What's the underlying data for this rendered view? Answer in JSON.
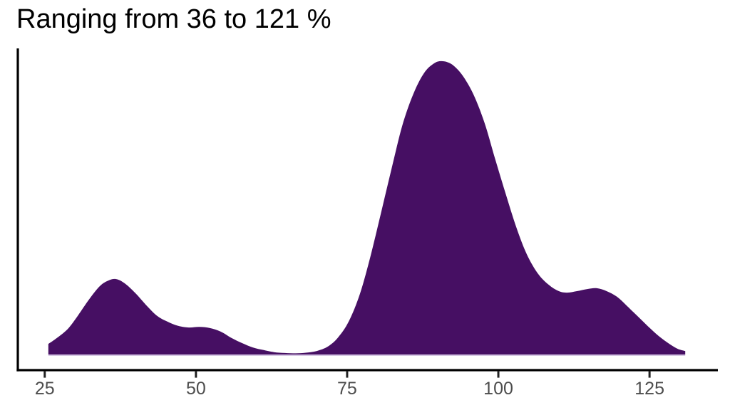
{
  "colors": {
    "background": "#FFFFFF",
    "fill": "#460F63",
    "axis_line": "#000000",
    "tick_mark": "#222222",
    "tick_label": "#4D4D4D",
    "title": "#000000",
    "baseline_edge": "#C9B5DB"
  },
  "chart_data": {
    "type": "area",
    "subtype": "density",
    "title": "Ranging from 36 to 121 %",
    "xlabel": "",
    "ylabel": "",
    "grid": false,
    "legend": false,
    "x_ticks": [
      25,
      50,
      75,
      100,
      125
    ],
    "xlim": [
      20.55,
      136.3
    ],
    "ylim": [
      0,
      1
    ],
    "y_units": "density-normalized-to-peak",
    "peaks": [
      {
        "x": 36.8,
        "y": 0.257
      },
      {
        "x": 50.6,
        "y": 0.094
      },
      {
        "x": 90.8,
        "y": 1.0
      },
      {
        "x": 116.3,
        "y": 0.226
      }
    ],
    "series": [
      {
        "name": "density",
        "x": [
          25.6,
          27.0,
          28.8,
          30.5,
          32.3,
          34.1,
          35.5,
          36.8,
          38.2,
          40.0,
          41.7,
          43.5,
          45.3,
          47.0,
          48.8,
          50.6,
          52.3,
          54.1,
          55.9,
          57.6,
          59.4,
          61.2,
          62.9,
          64.7,
          66.5,
          68.2,
          70.0,
          71.8,
          73.5,
          75.3,
          77.1,
          78.8,
          80.6,
          82.4,
          84.1,
          85.9,
          87.7,
          89.4,
          90.8,
          92.4,
          94.1,
          95.9,
          97.7,
          99.4,
          101.2,
          103.0,
          104.7,
          106.5,
          108.3,
          110.0,
          111.4,
          113.0,
          114.7,
          116.3,
          117.9,
          119.6,
          121.2,
          123.0,
          124.8,
          126.5,
          128.3,
          129.7,
          130.9
        ],
        "y": [
          0.036,
          0.056,
          0.087,
          0.133,
          0.187,
          0.233,
          0.252,
          0.257,
          0.243,
          0.209,
          0.17,
          0.133,
          0.112,
          0.098,
          0.092,
          0.094,
          0.09,
          0.078,
          0.056,
          0.039,
          0.024,
          0.015,
          0.008,
          0.005,
          0.004,
          0.006,
          0.012,
          0.027,
          0.058,
          0.114,
          0.206,
          0.33,
          0.483,
          0.638,
          0.779,
          0.886,
          0.959,
          0.993,
          1.0,
          0.988,
          0.951,
          0.886,
          0.791,
          0.672,
          0.549,
          0.432,
          0.342,
          0.277,
          0.238,
          0.216,
          0.211,
          0.216,
          0.223,
          0.226,
          0.216,
          0.197,
          0.167,
          0.131,
          0.095,
          0.063,
          0.036,
          0.019,
          0.012
        ]
      }
    ]
  }
}
